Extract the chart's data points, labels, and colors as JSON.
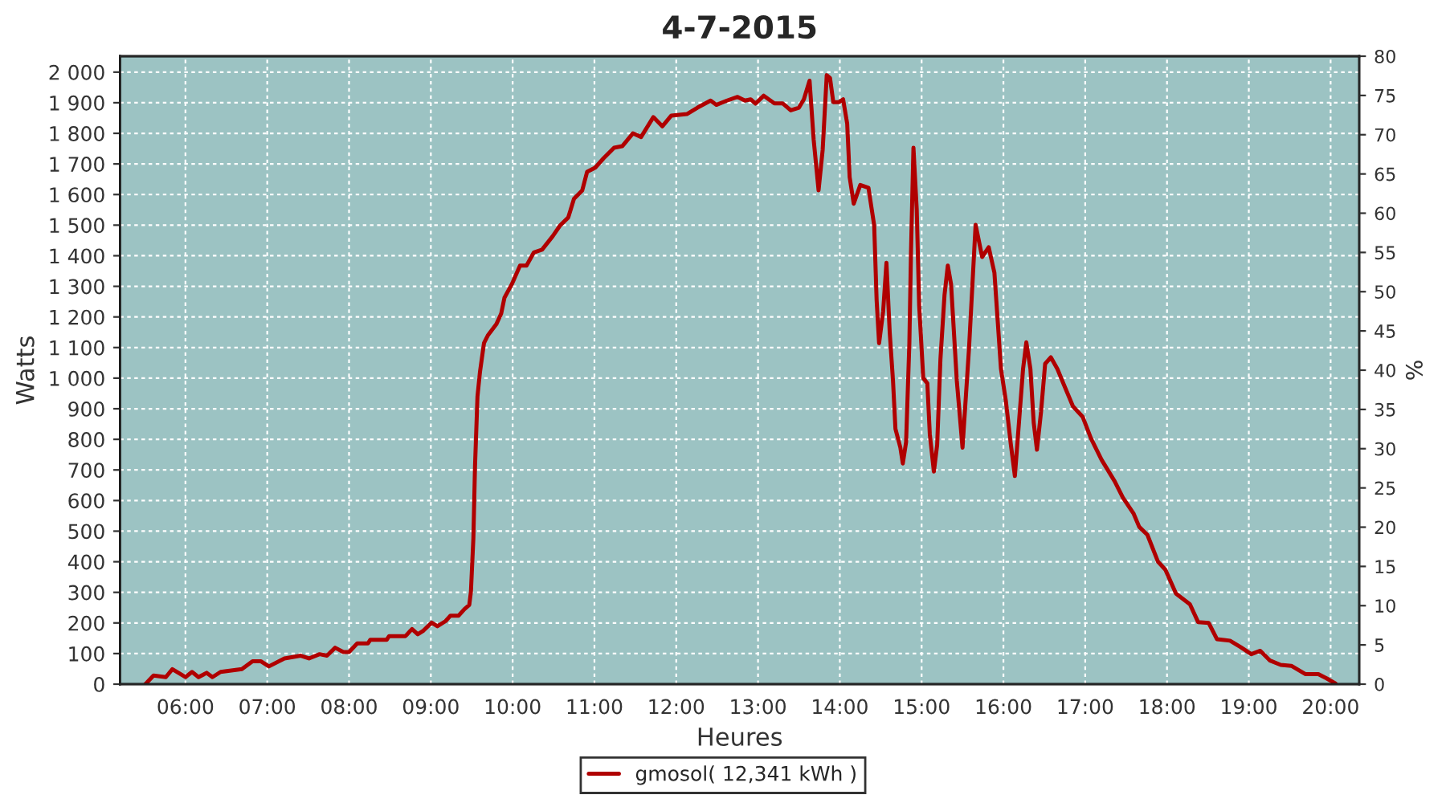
{
  "chart_data": {
    "type": "line",
    "title": "4-7-2015",
    "xlabel": "Heures",
    "ylabel": "Watts",
    "y2label": "%",
    "xlim": [
      5.2,
      20.35
    ],
    "ylim": [
      0,
      2052
    ],
    "y2lim": [
      0,
      80
    ],
    "xticks": [
      {
        "value": 6,
        "label": "06:00"
      },
      {
        "value": 7,
        "label": "07:00"
      },
      {
        "value": 8,
        "label": "08:00"
      },
      {
        "value": 9,
        "label": "09:00"
      },
      {
        "value": 10,
        "label": "10:00"
      },
      {
        "value": 11,
        "label": "11:00"
      },
      {
        "value": 12,
        "label": "12:00"
      },
      {
        "value": 13,
        "label": "13:00"
      },
      {
        "value": 14,
        "label": "14:00"
      },
      {
        "value": 15,
        "label": "15:00"
      },
      {
        "value": 16,
        "label": "16:00"
      },
      {
        "value": 17,
        "label": "17:00"
      },
      {
        "value": 18,
        "label": "18:00"
      },
      {
        "value": 19,
        "label": "19:00"
      },
      {
        "value": 20,
        "label": "20:00"
      }
    ],
    "yticks": [
      0,
      100,
      200,
      300,
      400,
      500,
      600,
      700,
      800,
      900,
      {
        "value": 1000,
        "label": "1 000"
      },
      {
        "value": 1100,
        "label": "1 100"
      },
      {
        "value": 1200,
        "label": "1 200"
      },
      {
        "value": 1300,
        "label": "1 300"
      },
      {
        "value": 1400,
        "label": "1 400"
      },
      {
        "value": 1500,
        "label": "1 500"
      },
      {
        "value": 1600,
        "label": "1 600"
      },
      {
        "value": 1700,
        "label": "1 700"
      },
      {
        "value": 1800,
        "label": "1 800"
      },
      {
        "value": 1900,
        "label": "1 900"
      },
      {
        "value": 2000,
        "label": "2 000"
      }
    ],
    "y2ticks": [
      0,
      5,
      10,
      15,
      20,
      25,
      30,
      35,
      40,
      45,
      50,
      55,
      60,
      65,
      70,
      75,
      80
    ],
    "grid": true,
    "legend": "bottom",
    "marker": "none",
    "line_style": "solid",
    "series": [
      {
        "name": "gmosol( 12,341 kWh )",
        "color": "#b00000",
        "x": [
          5.51,
          5.61,
          5.76,
          5.84,
          6.0,
          6.08,
          6.16,
          6.26,
          6.33,
          6.43,
          6.69,
          6.82,
          6.92,
          7.02,
          7.21,
          7.41,
          7.51,
          7.64,
          7.73,
          7.83,
          7.93,
          8.0,
          8.1,
          8.23,
          8.26,
          8.46,
          8.49,
          8.69,
          8.77,
          8.84,
          8.91,
          9.01,
          9.08,
          9.18,
          9.24,
          9.34,
          9.41,
          9.47,
          9.49,
          9.52,
          9.54,
          9.57,
          9.6,
          9.65,
          9.7,
          9.8,
          9.86,
          9.9,
          9.99,
          10.09,
          10.17,
          10.26,
          10.36,
          10.49,
          10.58,
          10.68,
          10.75,
          10.85,
          10.91,
          11.01,
          11.11,
          11.24,
          11.34,
          11.47,
          11.57,
          11.72,
          11.83,
          11.94,
          12.13,
          12.26,
          12.42,
          12.49,
          12.62,
          12.75,
          12.84,
          12.91,
          12.97,
          13.07,
          13.2,
          13.3,
          13.4,
          13.5,
          13.56,
          13.63,
          13.68,
          13.74,
          13.79,
          13.84,
          13.88,
          13.92,
          13.99,
          14.04,
          14.09,
          14.12,
          14.17,
          14.25,
          14.35,
          14.42,
          14.45,
          14.48,
          14.53,
          14.57,
          14.61,
          14.65,
          14.68,
          14.74,
          14.77,
          14.81,
          14.85,
          14.87,
          14.9,
          14.94,
          14.97,
          15.02,
          15.07,
          15.1,
          15.15,
          15.19,
          15.23,
          15.28,
          15.32,
          15.36,
          15.43,
          15.5,
          15.58,
          15.66,
          15.74,
          15.82,
          15.89,
          15.93,
          15.97,
          16.03,
          16.09,
          16.14,
          16.18,
          16.24,
          16.28,
          16.33,
          16.37,
          16.41,
          16.46,
          16.51,
          16.58,
          16.66,
          16.74,
          16.85,
          16.97,
          17.07,
          17.2,
          17.36,
          17.46,
          17.59,
          17.66,
          17.76,
          17.89,
          17.98,
          18.11,
          18.28,
          18.38,
          18.51,
          18.61,
          18.77,
          18.9,
          19.03,
          19.14,
          19.26,
          19.39,
          19.52,
          19.69,
          19.85,
          19.95,
          20.06
        ],
        "values": [
          0,
          28,
          23,
          49,
          23,
          40,
          23,
          37,
          23,
          40,
          49,
          75,
          75,
          58,
          84,
          93,
          84,
          98,
          93,
          119,
          105,
          105,
          133,
          133,
          145,
          145,
          157,
          157,
          180,
          163,
          175,
          201,
          189,
          206,
          224,
          224,
          245,
          259,
          302,
          477,
          712,
          940,
          1019,
          1115,
          1141,
          1176,
          1211,
          1263,
          1307,
          1368,
          1368,
          1411,
          1420,
          1464,
          1499,
          1525,
          1586,
          1613,
          1674,
          1688,
          1718,
          1753,
          1758,
          1800,
          1788,
          1853,
          1823,
          1858,
          1863,
          1884,
          1907,
          1893,
          1907,
          1919,
          1907,
          1911,
          1897,
          1923,
          1898,
          1898,
          1875,
          1884,
          1911,
          1972,
          1780,
          1614,
          1745,
          1990,
          1981,
          1902,
          1902,
          1911,
          1832,
          1657,
          1570,
          1631,
          1622,
          1499,
          1254,
          1114,
          1219,
          1377,
          1149,
          992,
          834,
          773,
          721,
          791,
          1114,
          1411,
          1753,
          1552,
          1237,
          1000,
          983,
          817,
          695,
          782,
          1062,
          1272,
          1368,
          1307,
          992,
          773,
          1100,
          1501,
          1396,
          1428,
          1344,
          1187,
          1030,
          925,
          785,
          680,
          820,
          1030,
          1117,
          1030,
          855,
          766,
          890,
          1047,
          1068,
          1030,
          978,
          908,
          873,
          803,
          733,
          663,
          610,
          558,
          514,
          488,
          400,
          374,
          296,
          261,
          203,
          200,
          147,
          142,
          121,
          98,
          109,
          77,
          63,
          60,
          33,
          33,
          19,
          2
        ]
      }
    ]
  }
}
